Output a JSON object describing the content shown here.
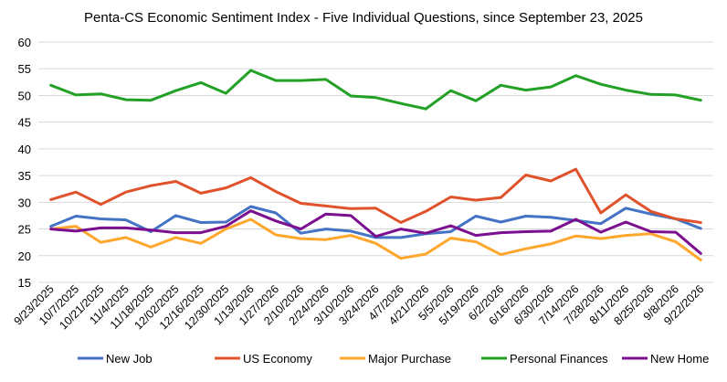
{
  "chart_data": {
    "type": "line",
    "title": "Penta-CS Economic Sentiment Index - Five Individual Questions, since September 23, 2025",
    "xlabel": "",
    "ylabel": "",
    "ylim": [
      15,
      60
    ],
    "yticks": [
      15,
      20,
      25,
      30,
      35,
      40,
      45,
      50,
      55,
      60
    ],
    "grid": true,
    "legend": "bottom",
    "x": [
      "9/23/2025",
      "10/7/2025",
      "10/21/2025",
      "11/4/2025",
      "11/18/2025",
      "12/02/2025",
      "12/16/2025",
      "12/30/2025",
      "1/13/2026",
      "1/27/2026",
      "2/10/2026",
      "2/24/2026",
      "3/10/2026",
      "3/24/2026",
      "4/7/2026",
      "4/21/2026",
      "5/5/2026",
      "5/19/2026",
      "6/2/2026",
      "6/16/2026",
      "6/30/2026",
      "7/14/2026",
      "7/28/2026",
      "8/11/2026",
      "8/25/2026",
      "9/8/2026",
      "9/22/2026"
    ],
    "series": [
      {
        "name": "New Job",
        "color": "#4472C4",
        "values": [
          25.5,
          27.4,
          26.9,
          26.7,
          24.5,
          27.5,
          26.2,
          26.3,
          29.2,
          28.0,
          24.2,
          25.0,
          24.6,
          23.4,
          23.4,
          24.1,
          24.5,
          27.4,
          26.3,
          27.4,
          27.2,
          26.6,
          26.0,
          28.9,
          27.8,
          26.9,
          25.1
        ]
      },
      {
        "name": "US Economy",
        "color": "#E0522B",
        "values": [
          30.5,
          31.9,
          29.6,
          31.9,
          33.1,
          33.9,
          31.7,
          32.7,
          34.6,
          32.0,
          29.8,
          29.3,
          28.8,
          28.9,
          26.2,
          28.3,
          31.0,
          30.4,
          30.9,
          35.1,
          34.0,
          36.2,
          28.0,
          31.4,
          28.3,
          26.9,
          26.2
        ]
      },
      {
        "name": "Major Purchase",
        "color": "#FFA72C",
        "values": [
          25.0,
          25.5,
          22.5,
          23.4,
          21.6,
          23.4,
          22.3,
          25.0,
          26.8,
          23.9,
          23.2,
          23.0,
          23.8,
          22.3,
          19.5,
          20.3,
          23.3,
          22.6,
          20.2,
          21.3,
          22.2,
          23.7,
          23.2,
          23.8,
          24.1,
          22.6,
          19.2
        ]
      },
      {
        "name": "Personal Finances",
        "color": "#23A127",
        "values": [
          51.9,
          50.1,
          50.3,
          49.2,
          49.1,
          50.9,
          52.4,
          50.4,
          54.7,
          52.8,
          52.8,
          53.0,
          49.9,
          49.6,
          48.5,
          47.5,
          50.9,
          49.0,
          51.9,
          51.0,
          51.6,
          53.7,
          52.1,
          51.0,
          50.2,
          50.1,
          49.1
        ]
      },
      {
        "name": "New Home",
        "color": "#7B0F8F",
        "values": [
          25.0,
          24.6,
          25.2,
          25.2,
          24.8,
          24.3,
          24.3,
          25.5,
          28.4,
          26.5,
          25.0,
          27.8,
          27.5,
          23.6,
          25.0,
          24.2,
          25.6,
          23.8,
          24.3,
          24.5,
          24.6,
          26.8,
          24.4,
          26.3,
          24.5,
          24.4,
          20.4
        ]
      }
    ]
  }
}
